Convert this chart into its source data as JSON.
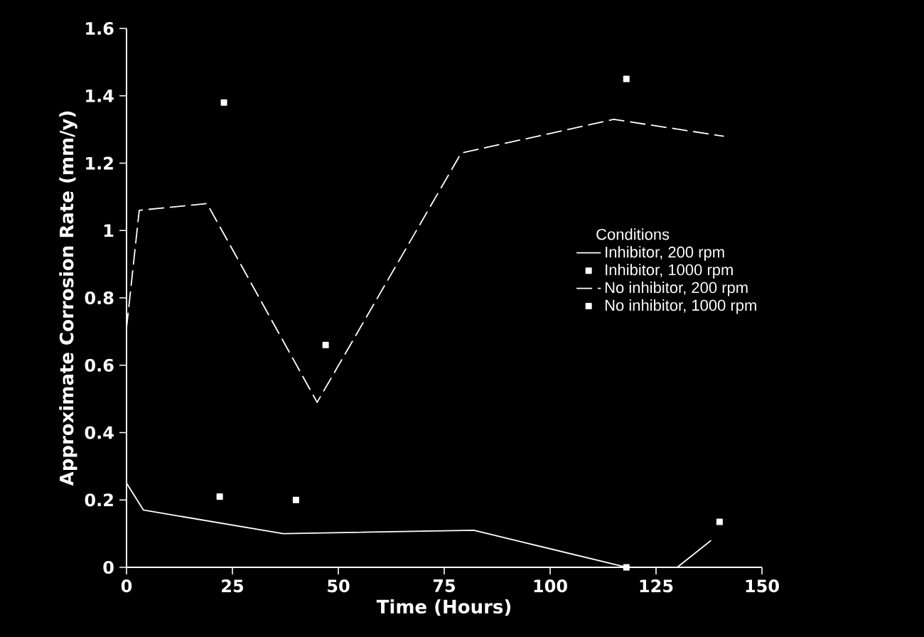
{
  "chart_data": {
    "type": "line",
    "xlabel": "Time (Hours)",
    "ylabel": "Approximate Corrosion Rate (mm/y)",
    "legend_title": "Conditions",
    "legend": "right",
    "grid": false,
    "xlim": [
      0,
      150
    ],
    "xticks": [
      0,
      25,
      50,
      75,
      100,
      125,
      150
    ],
    "ylim": [
      0,
      1.6
    ],
    "yticks": [
      0,
      0.2,
      0.4,
      0.6,
      0.8,
      1,
      1.2,
      1.4,
      1.6
    ],
    "series": [
      {
        "name": "Inhibitor, 200 rpm",
        "type": "line",
        "color": "#ffffff",
        "marker": "none",
        "line_style": "solid",
        "x": [
          0,
          4,
          37,
          82,
          118,
          130,
          138
        ],
        "values": [
          0.25,
          0.17,
          0.1,
          0.11,
          0,
          0,
          0.08
        ]
      },
      {
        "name": "Inhibitor, 1000 rpm",
        "type": "scatter",
        "color": "#ffffff",
        "marker": "square",
        "x": [
          22,
          40,
          118,
          140
        ],
        "values": [
          0.21,
          0.2,
          0,
          0.135
        ]
      },
      {
        "name": "No inhibitor, 200 rpm",
        "type": "line",
        "color": "#ffffff",
        "marker": "none",
        "line_style": "dashed",
        "x": [
          0,
          3,
          19,
          45,
          79,
          115,
          141
        ],
        "values": [
          0.71,
          1.06,
          1.08,
          0.49,
          1.23,
          1.33,
          1.28
        ]
      },
      {
        "name": "No inhibitor, 1000 rpm",
        "type": "scatter",
        "color": "#ffffff",
        "marker": "square",
        "x": [
          23,
          47,
          118
        ],
        "values": [
          1.38,
          0.66,
          1.45
        ]
      }
    ]
  }
}
